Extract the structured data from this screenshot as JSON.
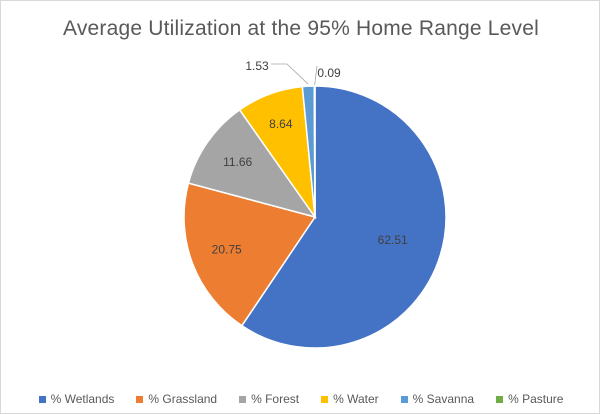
{
  "chart_data": {
    "type": "pie",
    "title": "Average Utilization at the 95% Home Range Level",
    "legend_position": "bottom",
    "slices": [
      {
        "label": "% Wetlands",
        "value": 62.51,
        "display": "62.51",
        "color": "#4472C4"
      },
      {
        "label": "% Grassland",
        "value": 20.75,
        "display": "20.75",
        "color": "#ED7D31"
      },
      {
        "label": "% Forest",
        "value": 11.66,
        "display": "11.66",
        "color": "#A5A5A5"
      },
      {
        "label": "% Water",
        "value": 8.64,
        "display": "8.64",
        "color": "#FFC000"
      },
      {
        "label": "% Savanna",
        "value": 1.53,
        "display": "1.53",
        "color": "#5B9BD5"
      },
      {
        "label": "% Pasture",
        "value": 0.09,
        "display": "0.09",
        "color": "#70AD47"
      }
    ]
  }
}
